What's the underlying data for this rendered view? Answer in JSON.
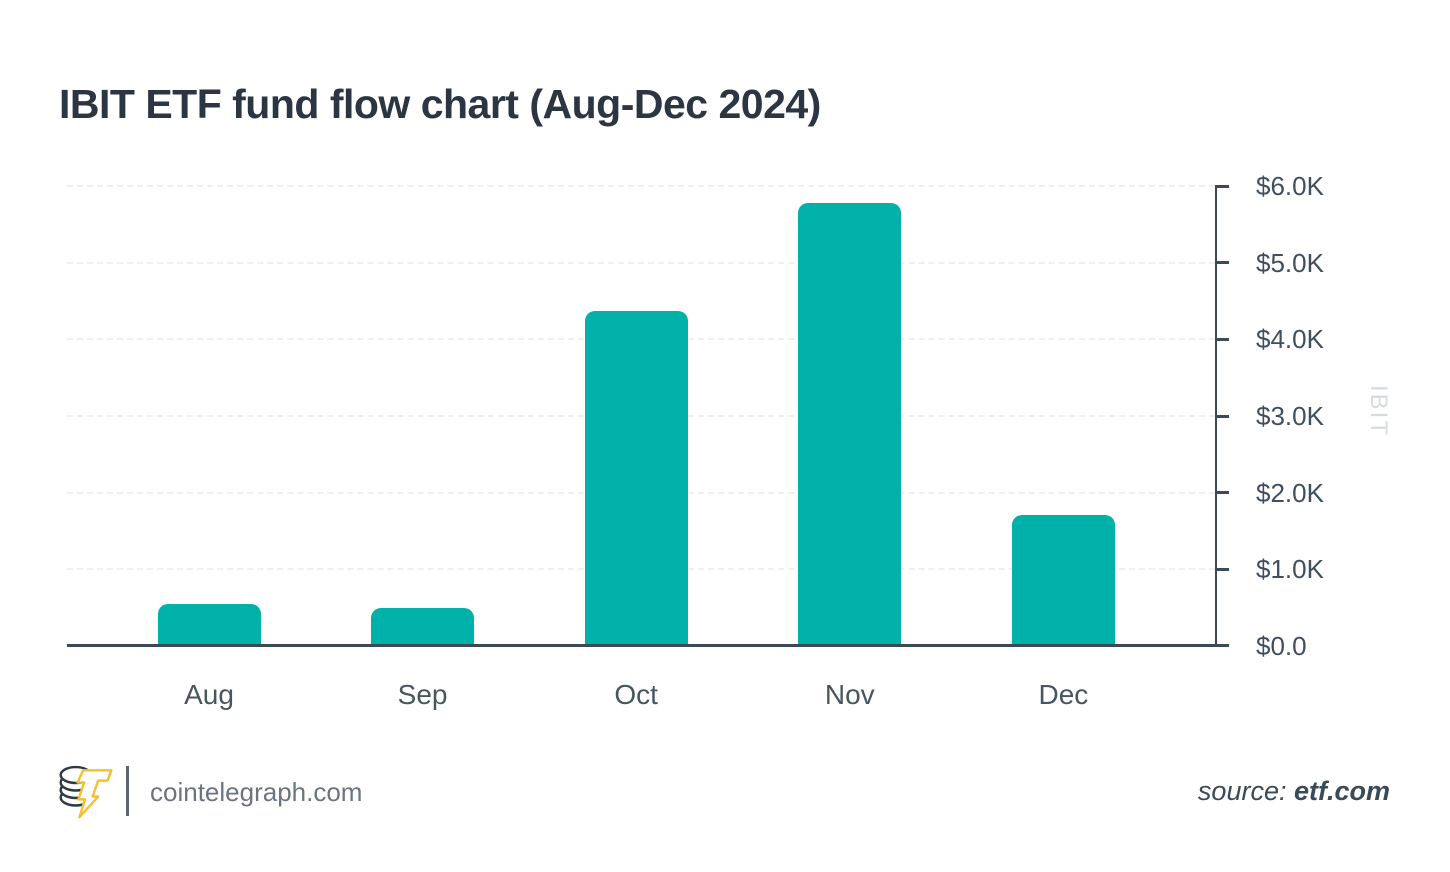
{
  "title": "IBIT ETF fund flow chart (Aug-Dec 2024)",
  "footer": {
    "brand_domain": "cointelegraph.com",
    "source_label": "source: ",
    "source_value": "etf.com"
  },
  "colors": {
    "bar": "#00b1a9",
    "axis": "#3d4a55",
    "title_text": "#2b3642",
    "tick_label": "#3f4f5d",
    "month_label": "#48575f",
    "gridline": "#efefef",
    "axis_title": "#d6dbe0",
    "brand_text": "#6a7580",
    "logo_bolt_yellow": "#f3c032",
    "logo_coin_outline": "#2e3a45"
  },
  "chart_data": {
    "type": "bar",
    "title": "IBIT ETF fund flow chart (Aug-Dec 2024)",
    "categories": [
      "Aug",
      "Sep",
      "Oct",
      "Nov",
      "Dec"
    ],
    "values": [
      0.55,
      0.5,
      4.37,
      5.78,
      1.71
    ],
    "unit": "thousand USD",
    "xlabel": "",
    "ylabel": "IBIT",
    "ylim": [
      0,
      6
    ],
    "yticks_top_to_bottom": [
      "$6.0K",
      "$5.0K",
      "$4.0K",
      "$3.0K",
      "$2.0K",
      "$1.0K",
      "$0.0"
    ],
    "grid": true,
    "gridline_style": "dashed",
    "y_axis_side": "right",
    "legend": "none"
  }
}
